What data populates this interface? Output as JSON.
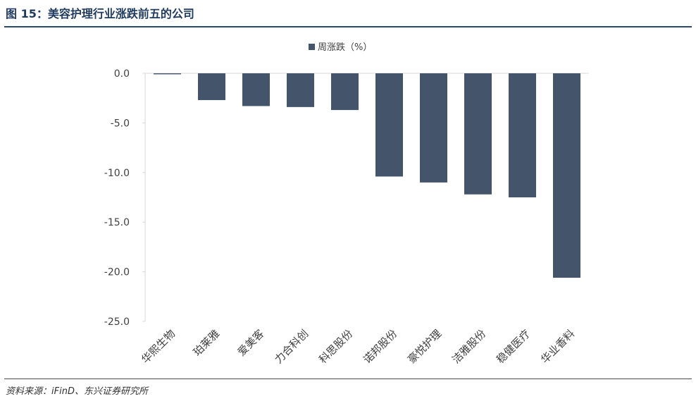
{
  "figure_title": "图 15：美容护理行业涨跌前五的公司",
  "source_note": "资料来源：iFinD、东兴证券研究所",
  "colors": {
    "bar": "#44546a",
    "title": "#1f3a5f",
    "axis": "#d9d9d9",
    "text": "#404040"
  },
  "chart_data": {
    "type": "bar",
    "title": "",
    "xlabel": "",
    "ylabel": "",
    "legend": {
      "position": "top",
      "entries": [
        "周涨跌（%）"
      ]
    },
    "grid": false,
    "ylim": [
      -25,
      0
    ],
    "yticks": [
      0,
      -5,
      -10,
      -15,
      -20,
      -25
    ],
    "ytick_labels": [
      "0.0",
      "-5.0",
      "-10.0",
      "-15.0",
      "-20.0",
      "-25.0"
    ],
    "categories": [
      "华熙生物",
      "珀莱雅",
      "爱美客",
      "力合科创",
      "科思股份",
      "诺邦股份",
      "豪悦护理",
      "洁雅股份",
      "稳健医疗",
      "华业香料"
    ],
    "series": [
      {
        "name": "周涨跌（%）",
        "values": [
          -0.1,
          -2.7,
          -3.3,
          -3.4,
          -3.7,
          -10.4,
          -11.0,
          -12.2,
          -12.5,
          -20.6
        ]
      }
    ]
  }
}
